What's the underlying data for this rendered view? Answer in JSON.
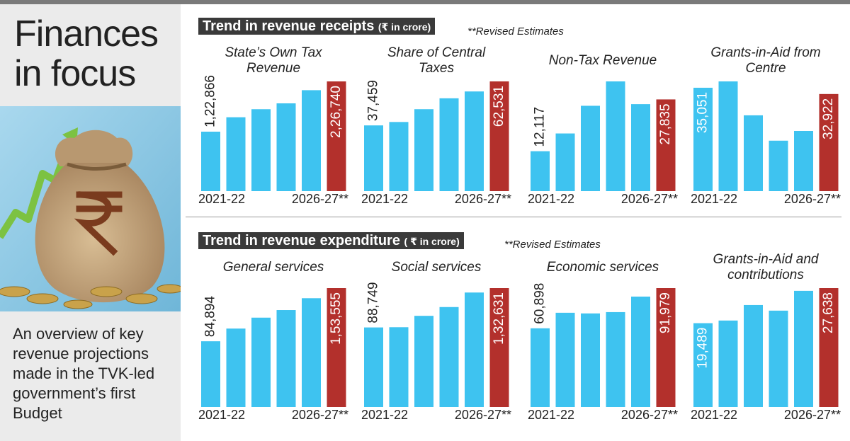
{
  "sidebar": {
    "title": "Finances in focus",
    "description": "An overview of key revenue projections made in the TVK-led government’s first Budget"
  },
  "sections": [
    {
      "title": "Trend in revenue receipts",
      "unit": "(₹ in crore)",
      "note": "**Revised Estimates"
    },
    {
      "title": "Trend in revenue expenditure",
      "unit": "( ₹ in crore)",
      "note": "**Revised Estimates"
    }
  ],
  "chart_data": [
    {
      "type": "bar",
      "title": "State’s Own Tax Revenue",
      "categories": [
        "2021-22",
        null,
        null,
        null,
        null,
        "2026-27**"
      ],
      "values": [
        122866,
        152700,
        169300,
        181400,
        208600,
        226740
      ],
      "value_labels": [
        "1,22,866",
        null,
        null,
        null,
        null,
        "2,26,740"
      ],
      "color": "#3ec3f0",
      "last_color": "#b3302c"
    },
    {
      "type": "bar",
      "title": "Share of Central Taxes",
      "categories": [
        "2021-22",
        null,
        null,
        null,
        null,
        "2026-27**"
      ],
      "values": [
        37459,
        39400,
        46700,
        52900,
        56800,
        62531
      ],
      "value_labels": [
        "37,459",
        null,
        null,
        null,
        null,
        "62,531"
      ],
      "color": "#3ec3f0",
      "last_color": "#b3302c"
    },
    {
      "type": "bar",
      "title": "Non-Tax Revenue",
      "categories": [
        "2021-22",
        null,
        null,
        null,
        null,
        "2026-27**"
      ],
      "values": [
        12117,
        17500,
        25900,
        33300,
        26400,
        27835
      ],
      "value_labels": [
        "12,117",
        null,
        null,
        null,
        null,
        "27,835"
      ],
      "color": "#3ec3f0",
      "last_color": "#b3302c"
    },
    {
      "type": "bar",
      "title": "Grants-in-Aid from Centre",
      "categories": [
        "2021-22",
        null,
        null,
        null,
        null,
        "2026-27**"
      ],
      "values": [
        35051,
        37200,
        25700,
        17100,
        20400,
        32922
      ],
      "value_labels": [
        "35,051",
        null,
        null,
        null,
        null,
        "32,922"
      ],
      "color": "#3ec3f0",
      "last_color": "#b3302c"
    },
    {
      "type": "bar",
      "title": "General services",
      "categories": [
        "2021-22",
        null,
        null,
        null,
        null,
        "2026-27**"
      ],
      "values": [
        84894,
        101300,
        115400,
        125200,
        140500,
        153555
      ],
      "value_labels": [
        "84,894",
        null,
        null,
        null,
        null,
        "1,53,555"
      ],
      "color": "#3ec3f0",
      "last_color": "#b3302c"
    },
    {
      "type": "bar",
      "title": "Social services",
      "categories": [
        "2021-22",
        null,
        null,
        null,
        null,
        "2026-27**"
      ],
      "values": [
        88749,
        89000,
        101700,
        111500,
        127700,
        132631
      ],
      "value_labels": [
        "88,749",
        null,
        null,
        null,
        null,
        "1,32,631"
      ],
      "color": "#3ec3f0",
      "last_color": "#b3302c"
    },
    {
      "type": "bar",
      "title": "Economic services",
      "categories": [
        "2021-22",
        null,
        null,
        null,
        null,
        "2026-27**"
      ],
      "values": [
        60898,
        72900,
        72400,
        73400,
        85400,
        91979
      ],
      "value_labels": [
        "60,898",
        null,
        null,
        null,
        null,
        "91,979"
      ],
      "color": "#3ec3f0",
      "last_color": "#b3302c"
    },
    {
      "type": "bar",
      "title": "Grants-in-Aid and contributions",
      "categories": [
        "2021-22",
        null,
        null,
        null,
        null,
        "2026-27**"
      ],
      "values": [
        19489,
        20100,
        23700,
        22400,
        27000,
        27638
      ],
      "value_labels": [
        "19,489",
        null,
        null,
        null,
        null,
        "27,638"
      ],
      "color": "#3ec3f0",
      "last_color": "#b3302c"
    }
  ]
}
